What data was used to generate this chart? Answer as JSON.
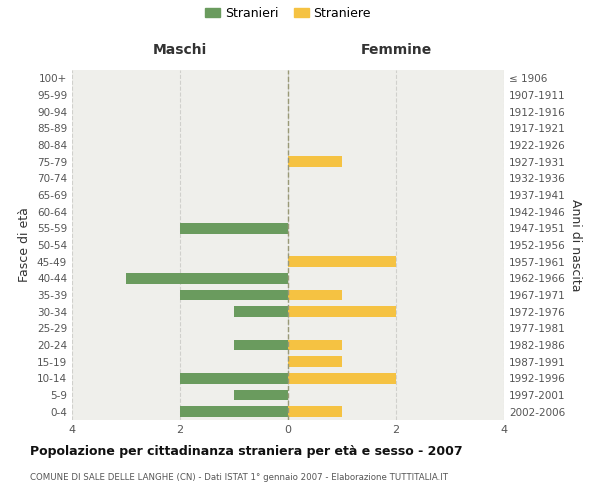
{
  "age_groups": [
    "0-4",
    "5-9",
    "10-14",
    "15-19",
    "20-24",
    "25-29",
    "30-34",
    "35-39",
    "40-44",
    "45-49",
    "50-54",
    "55-59",
    "60-64",
    "65-69",
    "70-74",
    "75-79",
    "80-84",
    "85-89",
    "90-94",
    "95-99",
    "100+"
  ],
  "birth_years": [
    "2002-2006",
    "1997-2001",
    "1992-1996",
    "1987-1991",
    "1982-1986",
    "1977-1981",
    "1972-1976",
    "1967-1971",
    "1962-1966",
    "1957-1961",
    "1952-1956",
    "1947-1951",
    "1942-1946",
    "1937-1941",
    "1932-1936",
    "1927-1931",
    "1922-1926",
    "1917-1921",
    "1912-1916",
    "1907-1911",
    "≤ 1906"
  ],
  "maschi": [
    2,
    1,
    2,
    0,
    1,
    0,
    1,
    2,
    3,
    0,
    0,
    2,
    0,
    0,
    0,
    0,
    0,
    0,
    0,
    0,
    0
  ],
  "femmine": [
    1,
    0,
    2,
    1,
    1,
    0,
    2,
    1,
    0,
    2,
    0,
    0,
    0,
    0,
    0,
    1,
    0,
    0,
    0,
    0,
    0
  ],
  "color_maschi": "#6a9b5e",
  "color_femmine": "#f5c242",
  "title": "Popolazione per cittadinanza straniera per età e sesso - 2007",
  "subtitle": "COMUNE DI SALE DELLE LANGHE (CN) - Dati ISTAT 1° gennaio 2007 - Elaborazione TUTTITALIA.IT",
  "xlabel_left": "Maschi",
  "xlabel_right": "Femmine",
  "ylabel": "Fasce di età",
  "ylabel_right": "Anni di nascita",
  "legend_maschi": "Stranieri",
  "legend_femmine": "Straniere",
  "xlim": 4,
  "background_color": "#efefeb",
  "grid_color": "#d0d0cc"
}
